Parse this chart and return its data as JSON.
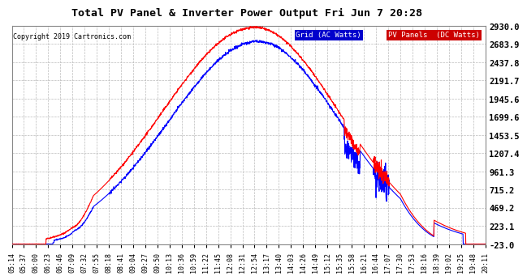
{
  "title": "Total PV Panel & Inverter Power Output Fri Jun 7 20:28",
  "copyright": "Copyright 2019 Cartronics.com",
  "legend_label_blue": "Grid (AC Watts)",
  "legend_label_red": "PV Panels  (DC Watts)",
  "grid_color": "#bbbbbb",
  "background_color": "#ffffff",
  "title_color": "#000000",
  "ymin": -23.0,
  "ymax": 2930.0,
  "yticks": [
    -23.0,
    223.1,
    469.2,
    715.2,
    961.3,
    1207.4,
    1453.5,
    1699.6,
    1945.6,
    2191.7,
    2437.8,
    2683.9,
    2930.0
  ],
  "xtick_labels": [
    "05:14",
    "05:37",
    "06:00",
    "06:23",
    "06:46",
    "07:09",
    "07:32",
    "07:55",
    "08:18",
    "08:41",
    "09:04",
    "09:27",
    "09:50",
    "10:13",
    "10:36",
    "10:59",
    "11:22",
    "11:45",
    "12:08",
    "12:31",
    "12:54",
    "13:17",
    "13:40",
    "14:03",
    "14:26",
    "14:49",
    "15:12",
    "15:35",
    "15:58",
    "16:21",
    "16:44",
    "17:07",
    "17:30",
    "17:53",
    "18:16",
    "18:39",
    "19:02",
    "19:25",
    "19:48",
    "20:11"
  ],
  "blue_line_color": "#0000ff",
  "red_line_color": "#ff0000",
  "line_width": 0.8
}
